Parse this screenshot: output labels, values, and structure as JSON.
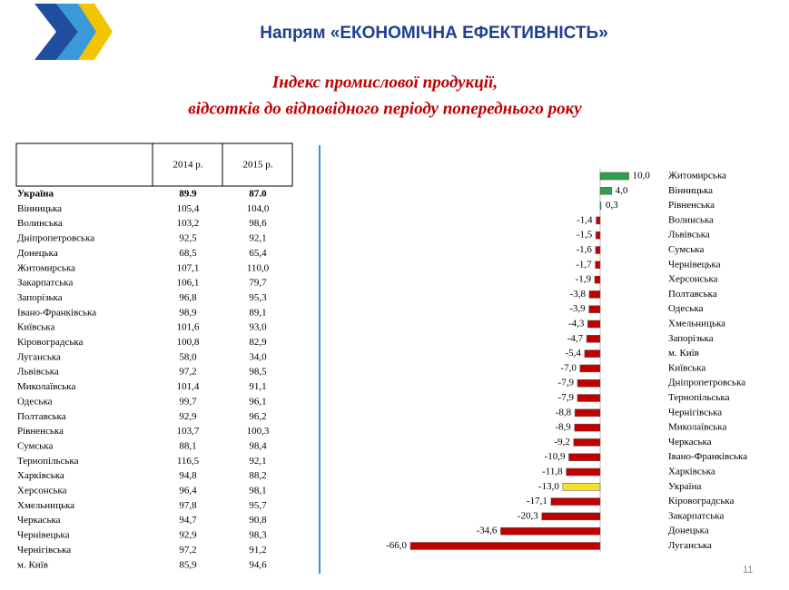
{
  "header": {
    "title": "Напрям «ЕКОНОМІЧНА ЕФЕКТИВНІСТЬ»",
    "subtitle": [
      "Індекс промислової продукції,",
      "відсотків до відповідного періоду попереднього року"
    ]
  },
  "table": {
    "header": [
      "2014 р.",
      "2015 р."
    ],
    "rows": [
      [
        "Україна",
        "89.9",
        "87.0"
      ],
      [
        "Вінницька",
        "105,4",
        "104,0"
      ],
      [
        "Волинська",
        "103,2",
        "98,6"
      ],
      [
        "Дніпропетровська",
        "92,5",
        "92,1"
      ],
      [
        "Донецька",
        "68,5",
        "65,4"
      ],
      [
        "Житомирська",
        "107,1",
        "110,0"
      ],
      [
        "Закарпатська",
        "106,1",
        "79,7"
      ],
      [
        "Запорізька",
        "96,8",
        "95,3"
      ],
      [
        "Івано-Франківська",
        "98,9",
        "89,1"
      ],
      [
        "Київська",
        "101,6",
        "93,0"
      ],
      [
        "Кіровоградська",
        "100,8",
        "82,9"
      ],
      [
        "Луганська",
        "58,0",
        "34,0"
      ],
      [
        "Львівська",
        "97,2",
        "98,5"
      ],
      [
        "Миколаївська",
        "101,4",
        "91,1"
      ],
      [
        "Одеська",
        "99,7",
        "96,1"
      ],
      [
        "Полтавська",
        "92,9",
        "96,2"
      ],
      [
        "Рівненська",
        "103,7",
        "100,3"
      ],
      [
        "Сумська",
        "88,1",
        "98,4"
      ],
      [
        "Тернопільська",
        "116,5",
        "92,1"
      ],
      [
        "Харківська",
        "94,8",
        "88,2"
      ],
      [
        "Херсонська",
        "96,4",
        "98,1"
      ],
      [
        "Хмельницька",
        "97,8",
        "95,7"
      ],
      [
        "Черкаська",
        "94,7",
        "90,8"
      ],
      [
        "Чернівецька",
        "92,9",
        "98,3"
      ],
      [
        "Чернігівська",
        "97,2",
        "91,2"
      ],
      [
        "м. Київ",
        "85,9",
        "94,6"
      ]
    ]
  },
  "chart_data": {
    "type": "hbar",
    "categories": [
      "Житомирська",
      "Вінницька",
      "Рівненська",
      "Волинська",
      "Львівська",
      "Сумська",
      "Чернівецька",
      "Херсонська",
      "Полтавська",
      "Одеська",
      "Хмельницька",
      "Запорізька",
      "м. Київ",
      "Київська",
      "Дніпропетровська",
      "Тернопільська",
      "Чернігівська",
      "Миколаївська",
      "Черкаська",
      "Івано-Франківська",
      "Харківська",
      "Україна",
      "Кіровоградська",
      "Закарпатська",
      "Донецька",
      "Луганська"
    ],
    "values": [
      10.0,
      4.0,
      0.3,
      -1.4,
      -1.5,
      -1.6,
      -1.7,
      -1.9,
      -3.8,
      -3.9,
      -4.3,
      -4.7,
      -5.4,
      -7.0,
      -7.9,
      -7.9,
      -8.8,
      -8.9,
      -9.2,
      -10.9,
      -11.8,
      -13.0,
      -17.1,
      -20.3,
      -34.6,
      -66.0
    ],
    "value_labels": [
      "10,0",
      "4,0",
      "0,3",
      "-1,4",
      "-1,5",
      "-1,6",
      "-1,7",
      "-1,9",
      "-3,8",
      "-3,9",
      "-4,3",
      "-4,7",
      "-5,4",
      "-7,0",
      "-7,9",
      "-7,9",
      "-8,8",
      "-8,9",
      "-9,2",
      "-10,9",
      "-11,8",
      "-13,0",
      "-17,1",
      "-20,3",
      "-34,6",
      "-66,0"
    ],
    "colors": [
      "#2e9e4f",
      "#2e9e4f",
      "#2e9e4f",
      "#c00000",
      "#c00000",
      "#c00000",
      "#c00000",
      "#c00000",
      "#c00000",
      "#c00000",
      "#c00000",
      "#c00000",
      "#c00000",
      "#c00000",
      "#c00000",
      "#c00000",
      "#c00000",
      "#c00000",
      "#c00000",
      "#c00000",
      "#c00000",
      "#f2e227",
      "#c00000",
      "#c00000",
      "#c00000",
      "#c00000"
    ]
  },
  "page_number": "11"
}
